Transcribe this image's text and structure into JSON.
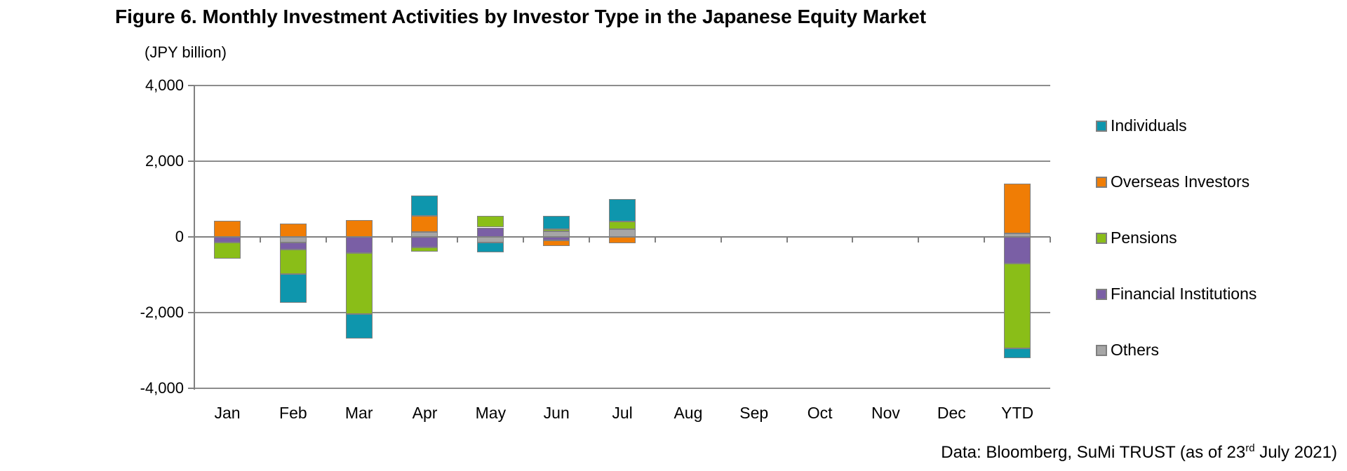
{
  "title": "Figure 6. Monthly Investment Activities by Investor Type in the Japanese Equity Market",
  "unit_label": "(JPY billion)",
  "footer": {
    "prefix": "Data: Bloomberg, SuMi TRUST (as of 23",
    "superscript": "rd",
    "suffix": " July 2021)"
  },
  "legend": {
    "position": "right",
    "items": [
      {
        "label": "Individuals",
        "color": "#0E96AD"
      },
      {
        "label": "Overseas Investors",
        "color": "#F07D05"
      },
      {
        "label": "Pensions",
        "color": "#8ABE18"
      },
      {
        "label": "Financial Institutions",
        "color": "#7A5FA5"
      },
      {
        "label": "Others",
        "color": "#A6A6A6"
      }
    ]
  },
  "chart_data": {
    "type": "bar",
    "stacked": true,
    "title": "Figure 6. Monthly Investment Activities by Investor Type in the Japanese Equity Market",
    "xlabel": "",
    "ylabel": "(JPY billion)",
    "ylim": [
      -4000,
      4000
    ],
    "yticks": [
      {
        "value": 4000,
        "label": "4,000"
      },
      {
        "value": 2000,
        "label": "2,000"
      },
      {
        "value": 0,
        "label": "0"
      },
      {
        "value": -2000,
        "label": "-2,000"
      },
      {
        "value": -4000,
        "label": "-4,000"
      }
    ],
    "grid": true,
    "legend_position": "right",
    "categories": [
      "Jan",
      "Feb",
      "Mar",
      "Apr",
      "May",
      "Jun",
      "Jul",
      "Aug",
      "Sep",
      "Oct",
      "Nov",
      "Dec",
      "YTD"
    ],
    "stack_order_from_axis": [
      "Others",
      "Financial Institutions",
      "Pensions",
      "Overseas Investors",
      "Individuals"
    ],
    "series": [
      {
        "name": "Individuals",
        "color": "#0E96AD",
        "values": [
          0,
          -750,
          -650,
          550,
          -250,
          350,
          600,
          0,
          0,
          0,
          0,
          0,
          -250
        ]
      },
      {
        "name": "Overseas Investors",
        "color": "#F07D05",
        "values": [
          430,
          350,
          450,
          420,
          0,
          -150,
          -170,
          0,
          0,
          0,
          0,
          0,
          1300
        ]
      },
      {
        "name": "Pensions",
        "color": "#8ABE18",
        "values": [
          -420,
          -650,
          -1600,
          -110,
          300,
          50,
          200,
          0,
          0,
          0,
          0,
          0,
          -2250
        ]
      },
      {
        "name": "Financial Institutions",
        "color": "#7A5FA5",
        "values": [
          -150,
          -200,
          -430,
          -270,
          250,
          -100,
          0,
          0,
          0,
          0,
          0,
          0,
          -700
        ]
      },
      {
        "name": "Others",
        "color": "#A6A6A6",
        "values": [
          0,
          -140,
          0,
          130,
          -150,
          150,
          200,
          0,
          0,
          0,
          0,
          0,
          100
        ]
      }
    ]
  }
}
